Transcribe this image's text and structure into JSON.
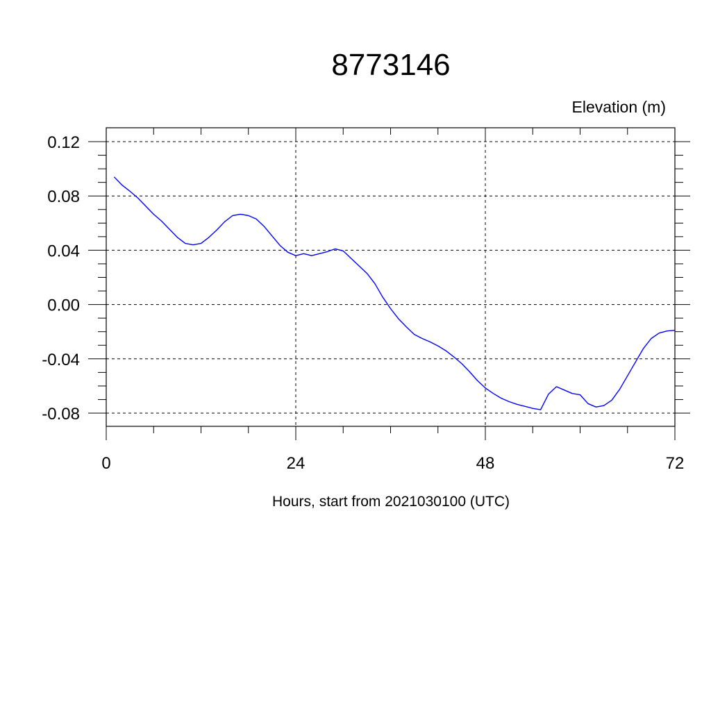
{
  "chart_data": {
    "type": "line",
    "title": "8773146",
    "ylabel": "Elevation (m)",
    "xlabel": "Hours, start from 2021030100 (UTC)",
    "xlim": [
      0,
      72
    ],
    "ylim": [
      -0.09,
      0.12
    ],
    "x_ticks": [
      0,
      24,
      48,
      72
    ],
    "x_tick_labels": [
      "0",
      "24",
      "48",
      "72"
    ],
    "y_ticks": [
      0.12,
      0.08,
      0.04,
      0.0,
      -0.04,
      -0.08
    ],
    "y_tick_labels": [
      "0.12",
      "0.08",
      "0.04",
      "0.00",
      "-0.04",
      "-0.08"
    ],
    "grid": true,
    "line_color": "#0000ff",
    "series": [
      {
        "x": [
          1,
          2,
          3,
          4,
          5,
          6,
          7,
          8,
          9,
          10,
          11,
          12,
          13,
          14,
          15,
          16,
          17,
          18,
          19,
          20,
          21,
          22,
          23,
          24,
          25,
          26,
          27,
          28,
          29,
          30,
          31,
          32,
          33,
          34,
          35,
          36,
          37,
          38,
          39,
          40,
          41,
          42,
          43,
          44,
          45,
          46,
          47,
          48,
          49,
          50,
          51,
          52,
          53,
          54,
          55,
          56,
          57,
          58,
          59,
          60,
          61,
          62,
          63,
          64,
          65,
          66,
          67,
          68,
          69,
          70,
          71,
          72
        ],
        "values": [
          0.094,
          0.088,
          0.0835,
          0.0785,
          0.0725,
          0.0665,
          0.0615,
          0.0555,
          0.0495,
          0.045,
          0.044,
          0.045,
          0.0495,
          0.055,
          0.061,
          0.0655,
          0.0665,
          0.0655,
          0.063,
          0.0575,
          0.0505,
          0.0435,
          0.0385,
          0.036,
          0.0375,
          0.036,
          0.0375,
          0.039,
          0.041,
          0.0395,
          0.034,
          0.0285,
          0.023,
          0.0155,
          0.0055,
          -0.003,
          -0.0105,
          -0.0165,
          -0.022,
          -0.025,
          -0.0275,
          -0.0305,
          -0.034,
          -0.0385,
          -0.0435,
          -0.0495,
          -0.056,
          -0.0615,
          -0.0655,
          -0.069,
          -0.0715,
          -0.0735,
          -0.075,
          -0.0765,
          -0.0775,
          -0.066,
          -0.0605,
          -0.063,
          -0.0655,
          -0.0665,
          -0.073,
          -0.0755,
          -0.0745,
          -0.0705,
          -0.0625,
          -0.0525,
          -0.0425,
          -0.0325,
          -0.025,
          -0.021,
          -0.0195,
          -0.019
        ]
      }
    ]
  }
}
